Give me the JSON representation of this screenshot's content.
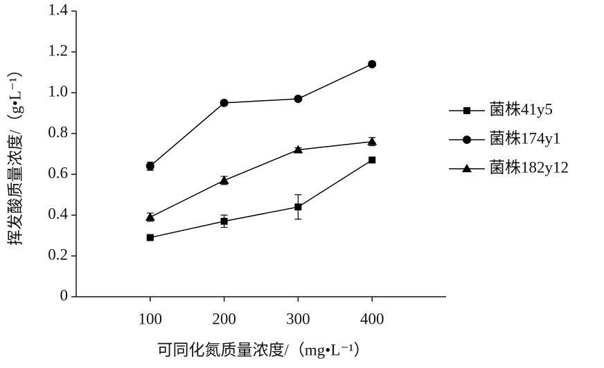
{
  "chart_data": {
    "type": "line",
    "xlabel": "可同化氮质量浓度/（mg•L⁻¹）",
    "ylabel": "挥发酸质量浓度/（g•L⁻¹）",
    "x": [
      100,
      200,
      300,
      400
    ],
    "xlim": [
      0,
      500
    ],
    "xticks": [
      100,
      200,
      300,
      400
    ],
    "ylim": [
      0,
      1.4
    ],
    "yticks": [
      0,
      0.2,
      0.4,
      0.6,
      0.8,
      {
        "value": 1,
        "label": "1.0"
      },
      1.2,
      1.4
    ],
    "grid": false,
    "legend": "right",
    "series": [
      {
        "name": "菌株41y5",
        "color": "#000000",
        "marker": "square",
        "values": [
          0.29,
          0.37,
          0.44,
          0.67
        ],
        "errors": [
          0.01,
          0.03,
          0.06,
          0.01
        ]
      },
      {
        "name": "菌株174y1",
        "color": "#000000",
        "marker": "circle",
        "values": [
          0.64,
          0.95,
          0.97,
          1.14
        ],
        "errors": [
          0.02,
          0.01,
          0.01,
          0.01
        ]
      },
      {
        "name": "菌株182y12",
        "color": "#000000",
        "marker": "triangle",
        "values": [
          0.39,
          0.57,
          0.72,
          0.76
        ],
        "errors": [
          0.02,
          0.02,
          0.01,
          0.02
        ]
      }
    ]
  }
}
